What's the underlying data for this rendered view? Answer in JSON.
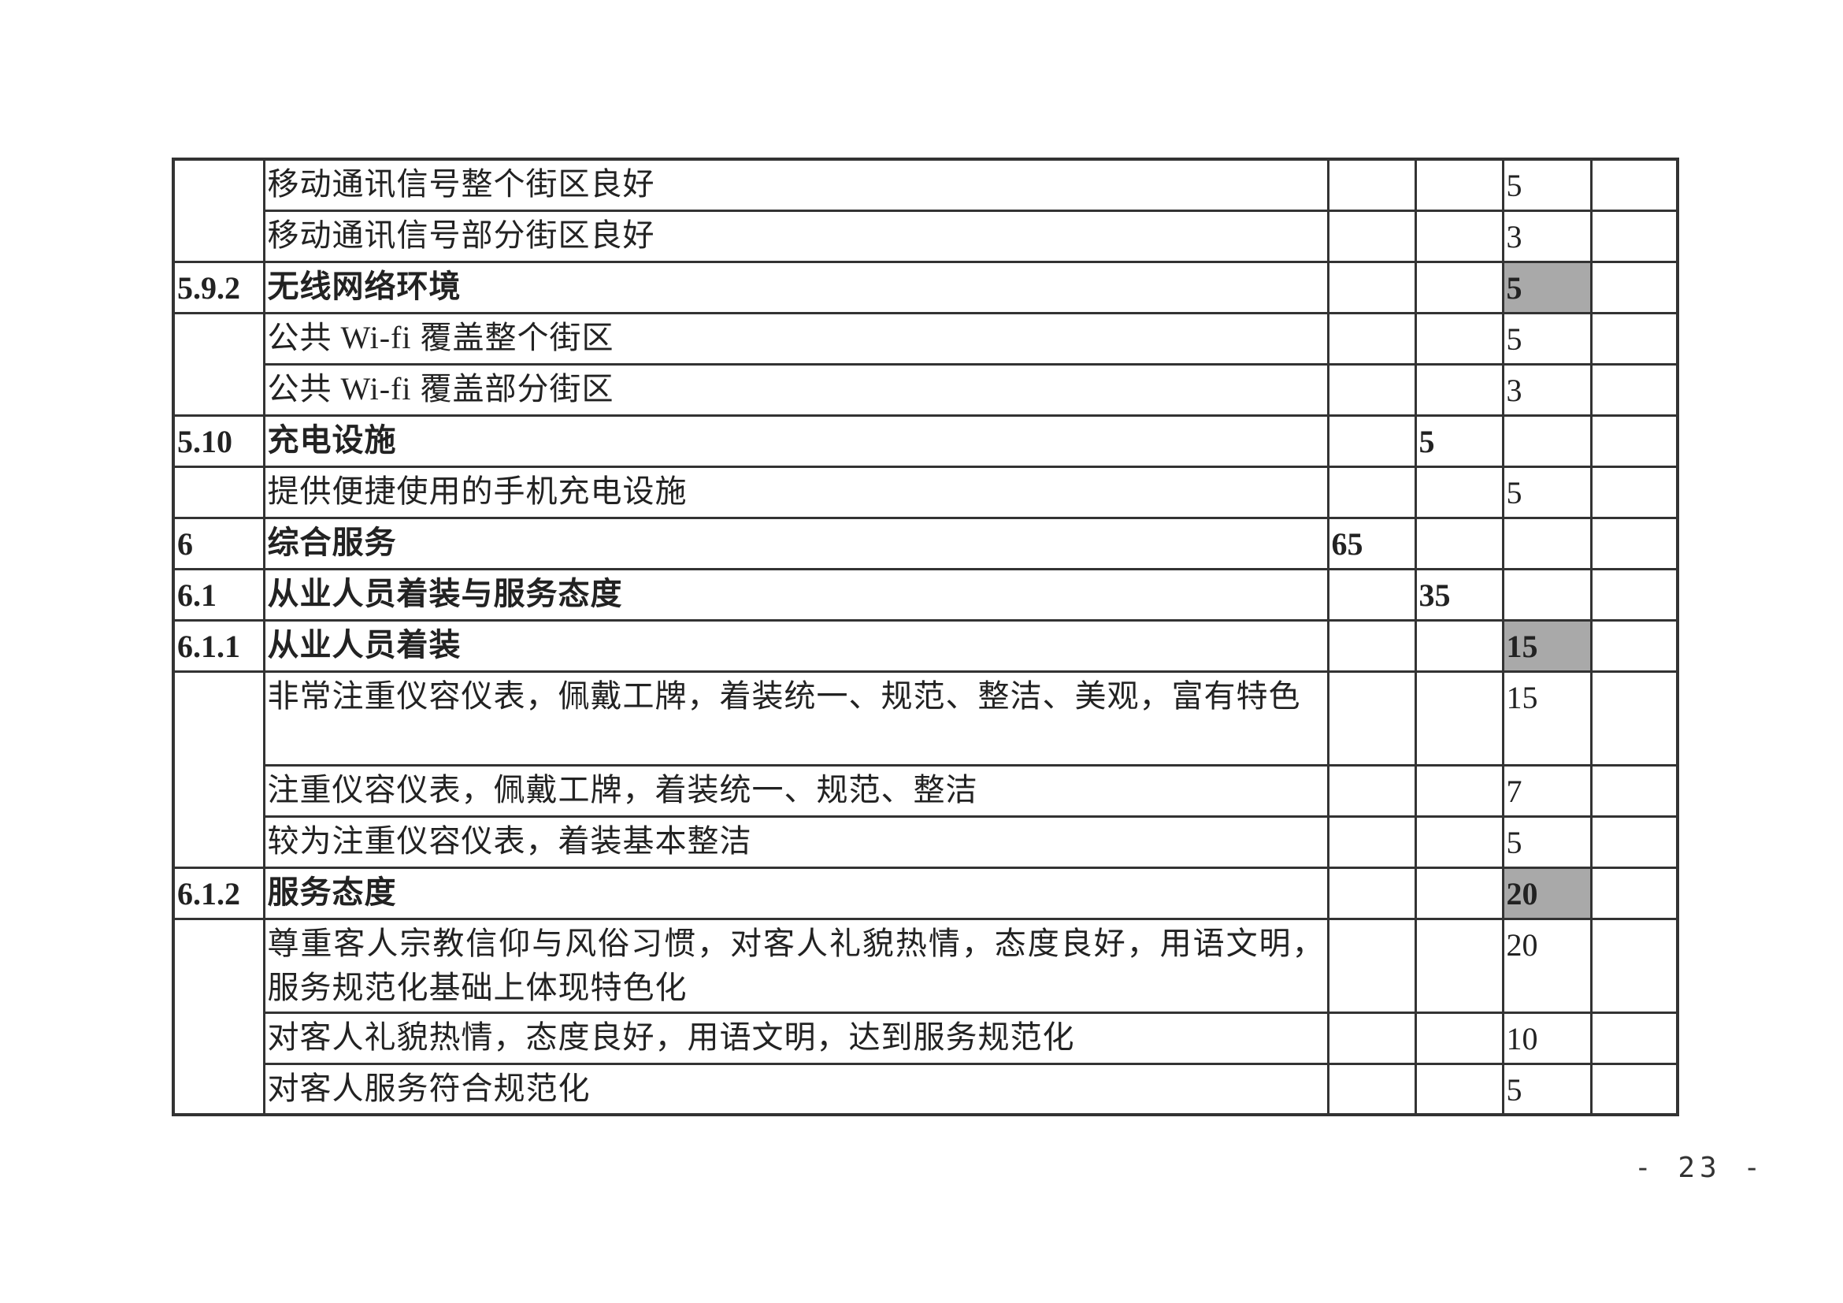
{
  "table": {
    "rows": [
      {
        "code": "",
        "text": "移动通讯信号整个街区良好",
        "c2": "",
        "c3": "",
        "c4": "5",
        "c5": "",
        "bold": false,
        "shade": false,
        "span": 2
      },
      {
        "code": null,
        "text": "移动通讯信号部分街区良好",
        "c2": "",
        "c3": "",
        "c4": "3",
        "c5": "",
        "bold": false,
        "shade": false
      },
      {
        "code": "5.9.2",
        "text": "无线网络环境",
        "c2": "",
        "c3": "",
        "c4": "5",
        "c5": "",
        "bold": true,
        "shade": true,
        "span": 1
      },
      {
        "code": "",
        "text": "公共 Wi-fi 覆盖整个街区",
        "c2": "",
        "c3": "",
        "c4": "5",
        "c5": "",
        "bold": false,
        "shade": false,
        "span": 2
      },
      {
        "code": null,
        "text": "公共 Wi-fi 覆盖部分街区",
        "c2": "",
        "c3": "",
        "c4": "3",
        "c5": "",
        "bold": false,
        "shade": false
      },
      {
        "code": "5.10",
        "text": "充电设施",
        "c2": "",
        "c3": "5",
        "c4": "",
        "c5": "",
        "bold": true,
        "shade": false,
        "span": 1
      },
      {
        "code": "",
        "text": "提供便捷使用的手机充电设施",
        "c2": "",
        "c3": "",
        "c4": "5",
        "c5": "",
        "bold": false,
        "shade": false,
        "span": 1
      },
      {
        "code": "6",
        "text": "综合服务",
        "c2": "65",
        "c3": "",
        "c4": "",
        "c5": "",
        "bold": true,
        "shade": false,
        "span": 1
      },
      {
        "code": "6.1",
        "text": "从业人员着装与服务态度",
        "c2": "",
        "c3": "35",
        "c4": "",
        "c5": "",
        "bold": true,
        "shade": false,
        "span": 1
      },
      {
        "code": "6.1.1",
        "text": "从业人员着装",
        "c2": "",
        "c3": "",
        "c4": "15",
        "c5": "",
        "bold": true,
        "shade": true,
        "span": 1
      },
      {
        "code": "",
        "text": "非常注重仪容仪表，佩戴工牌，着装统一、规范、整洁、美观，富有特色",
        "c2": "",
        "c3": "",
        "c4": "15",
        "c5": "",
        "bold": false,
        "shade": false,
        "span": 3,
        "tall": true
      },
      {
        "code": null,
        "text": "注重仪容仪表，佩戴工牌，着装统一、规范、整洁",
        "c2": "",
        "c3": "",
        "c4": "7",
        "c5": "",
        "bold": false,
        "shade": false
      },
      {
        "code": null,
        "text": "较为注重仪容仪表，着装基本整洁",
        "c2": "",
        "c3": "",
        "c4": "5",
        "c5": "",
        "bold": false,
        "shade": false
      },
      {
        "code": "6.1.2",
        "text": "服务态度",
        "c2": "",
        "c3": "",
        "c4": "20",
        "c5": "",
        "bold": true,
        "shade": true,
        "span": 1
      },
      {
        "code": "",
        "text": "尊重客人宗教信仰与风俗习惯，对客人礼貌热情，态度良好，用语文明，服务规范化基础上体现特色化",
        "c2": "",
        "c3": "",
        "c4": "20",
        "c5": "",
        "bold": false,
        "shade": false,
        "span": 3,
        "tall": true
      },
      {
        "code": null,
        "text": "对客人礼貌热情，态度良好，用语文明，达到服务规范化",
        "c2": "",
        "c3": "",
        "c4": "10",
        "c5": "",
        "bold": false,
        "shade": false
      },
      {
        "code": null,
        "text": "对客人服务符合规范化",
        "c2": "",
        "c3": "",
        "c4": "5",
        "c5": "",
        "bold": false,
        "shade": false
      }
    ],
    "shade_color": "#a9a9a9"
  },
  "page_number": "- 23 -"
}
